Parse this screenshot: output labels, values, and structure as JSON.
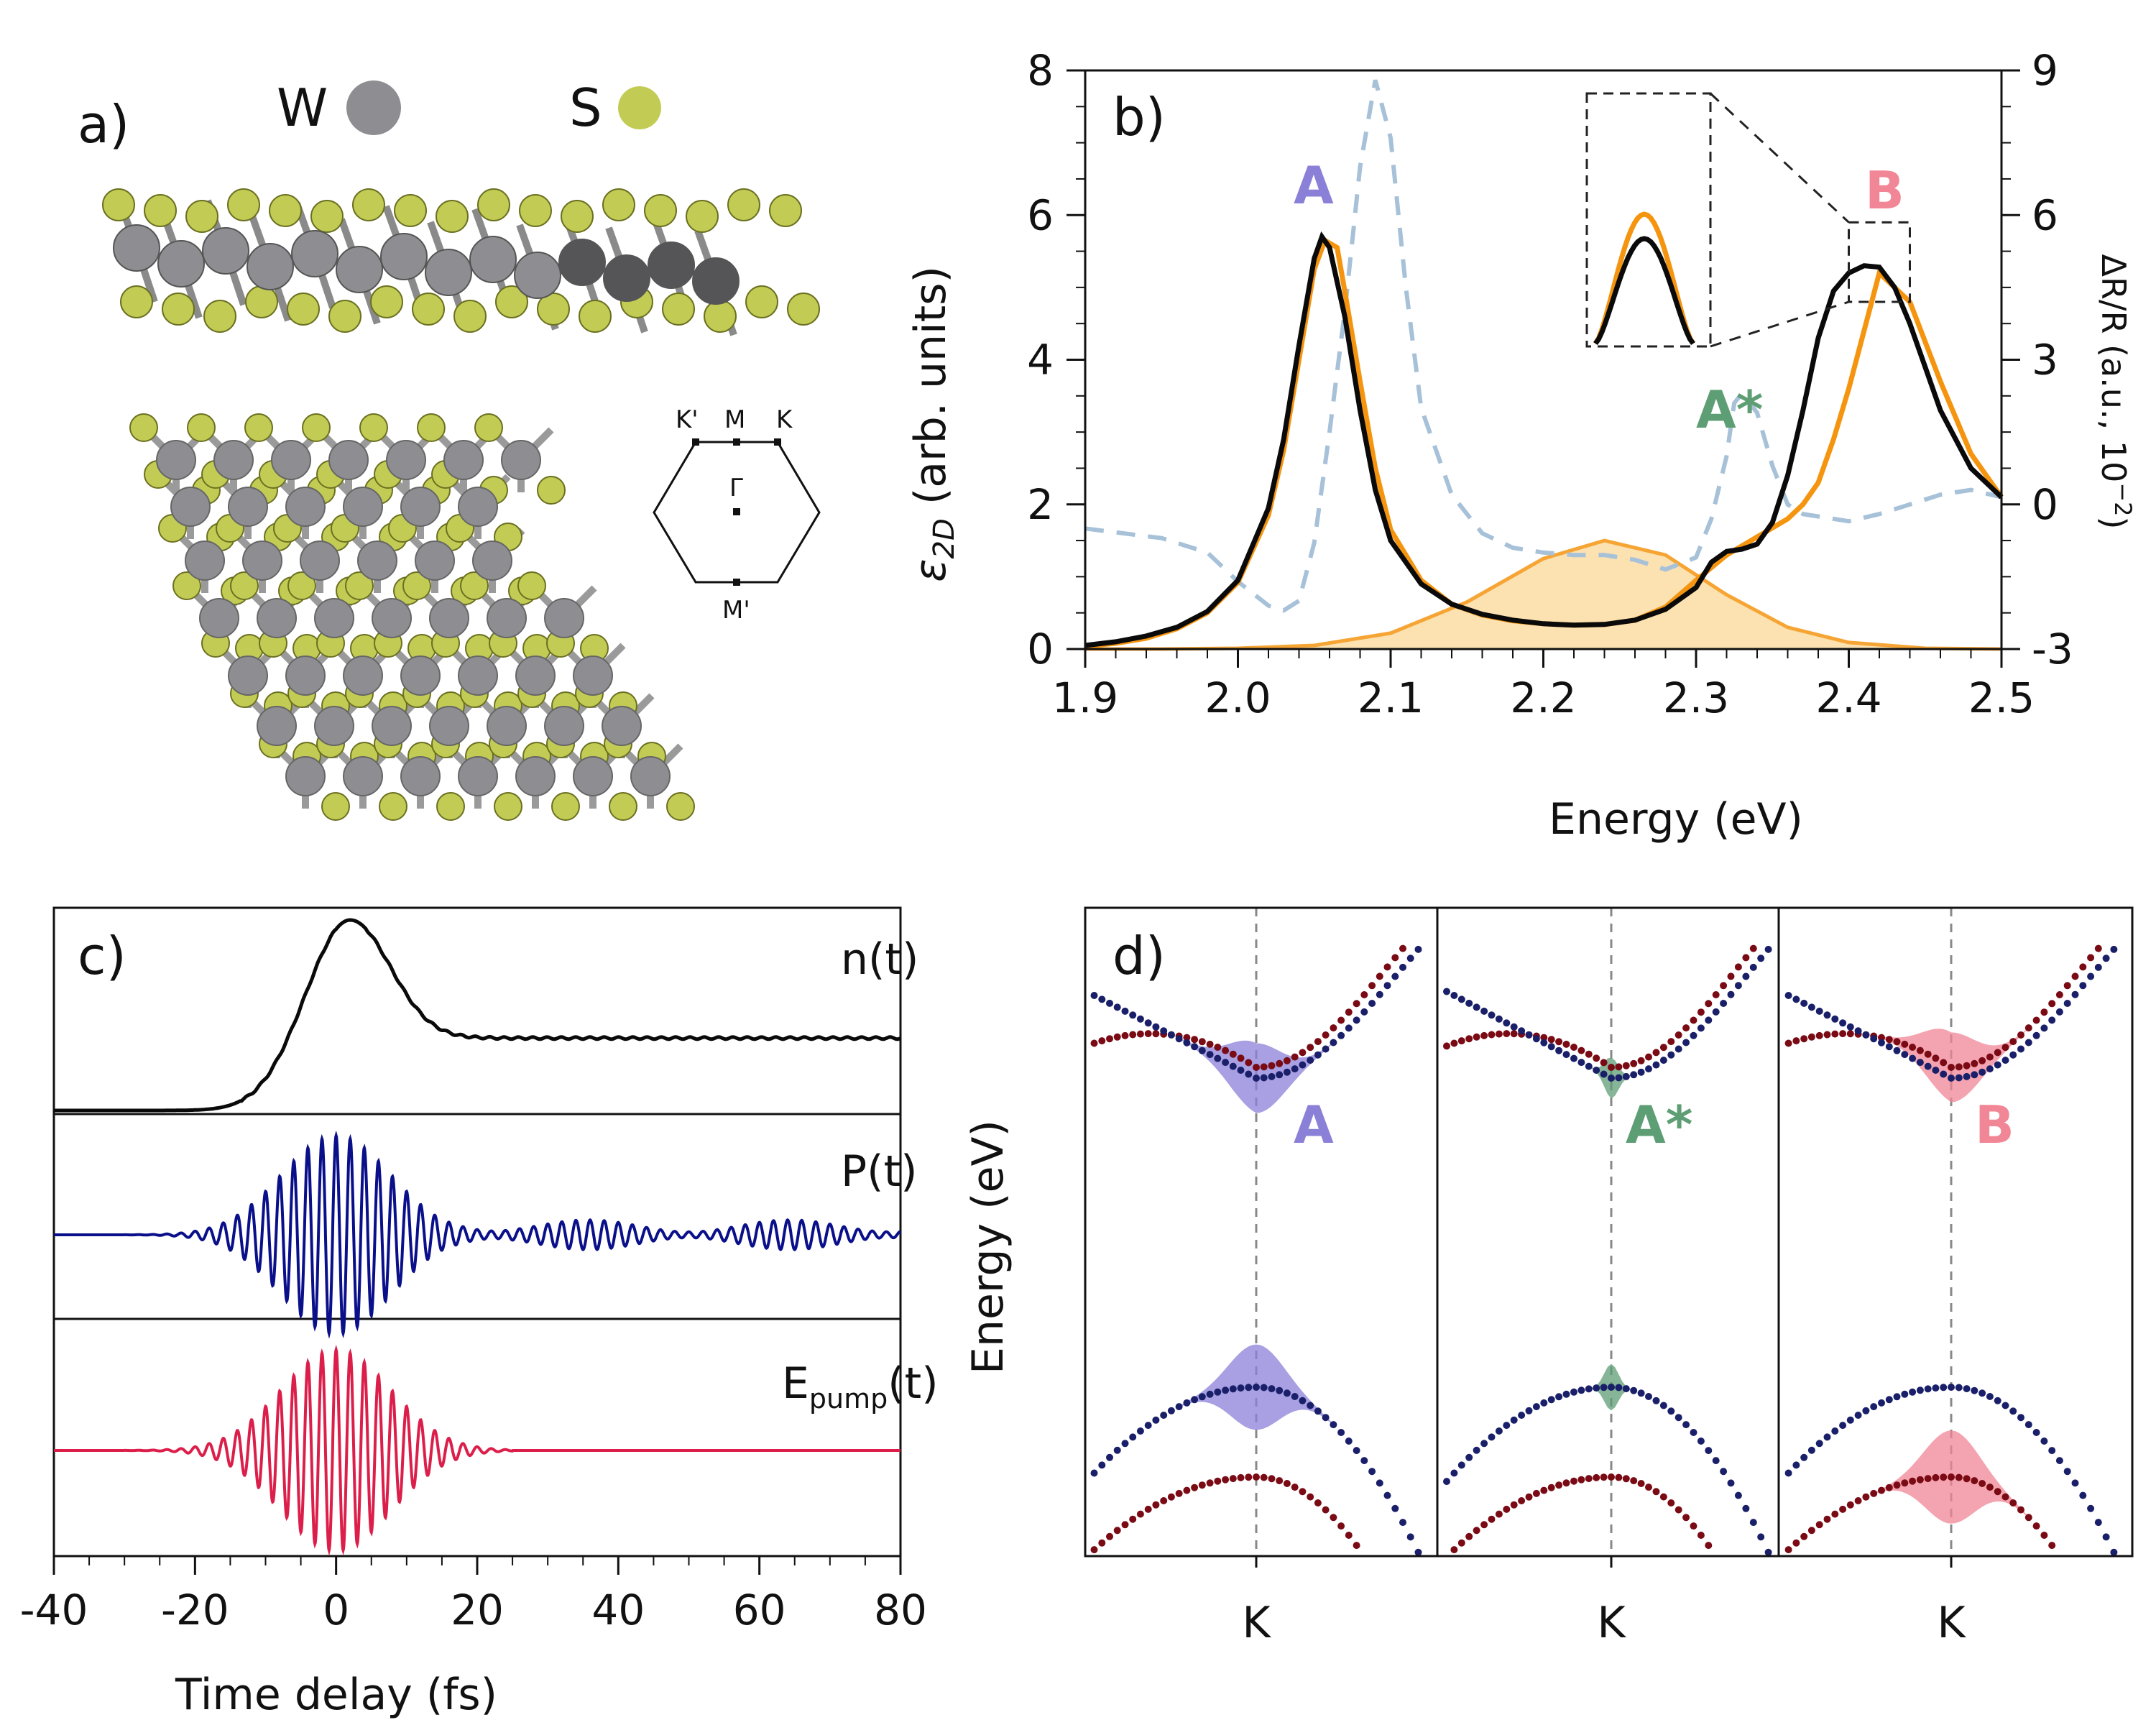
{
  "colors": {
    "black": "#0a0a0a",
    "orange": "#f5950f",
    "orange_fill": "#fbdca3",
    "dashed_blue": "#a7c1d8",
    "A": "#8b80d8",
    "Astar": "#5e9e74",
    "B": "#f08696",
    "W_atom": "#8e8e92",
    "S_atom": "#c2cc55",
    "navy": "#0a0f8a",
    "crimson": "#dc1f4a",
    "band_red": "#7a0a14",
    "band_blue": "#1a1f6a"
  },
  "panel_a": {
    "label": "a)",
    "legend_W": "W",
    "legend_S": "S",
    "bz": {
      "Kp": "K'",
      "M": "M",
      "K": "K",
      "Gamma": "Γ",
      "Mp": "M'"
    }
  },
  "chart_data": [
    {
      "id": "b",
      "type": "line",
      "label": "b)",
      "title": "",
      "xlabel": "Energy (eV)",
      "ylabel": "ε2D (arb. units)",
      "ylabel_main": "ε",
      "ylabel_sub": "2D",
      "ylabel_rest": " (arb. units)",
      "y2label": "ΔR/R (a.u., 10⁻²)",
      "y2label_main": "ΔR/R (a.u., 10",
      "y2label_sup": "−2",
      "y2label_end": ")",
      "xlim": [
        1.9,
        2.5
      ],
      "ylim": [
        0,
        8
      ],
      "y2lim": [
        -3,
        9
      ],
      "xticks": [
        "1.9",
        "2.0",
        "2.1",
        "2.2",
        "2.3",
        "2.4",
        "2.5"
      ],
      "yticks": [
        "0",
        "2",
        "4",
        "6",
        "8"
      ],
      "y2ticks": [
        "-3",
        "0",
        "3",
        "6",
        "9"
      ],
      "peak_labels": {
        "A": "A",
        "Astar": "A*",
        "B": "B"
      },
      "series": [
        {
          "name": "black",
          "style": "solid",
          "axis": "left",
          "x": [
            1.9,
            1.92,
            1.94,
            1.96,
            1.98,
            2.0,
            2.02,
            2.03,
            2.04,
            2.05,
            2.055,
            2.06,
            2.07,
            2.08,
            2.09,
            2.1,
            2.12,
            2.14,
            2.16,
            2.18,
            2.2,
            2.22,
            2.24,
            2.26,
            2.28,
            2.3,
            2.31,
            2.32,
            2.33,
            2.34,
            2.35,
            2.36,
            2.37,
            2.38,
            2.39,
            2.4,
            2.41,
            2.42,
            2.43,
            2.44,
            2.45,
            2.46,
            2.48,
            2.5
          ],
          "y": [
            0.05,
            0.1,
            0.18,
            0.3,
            0.52,
            0.95,
            1.95,
            2.9,
            4.2,
            5.4,
            5.7,
            5.55,
            4.6,
            3.3,
            2.2,
            1.5,
            0.9,
            0.62,
            0.48,
            0.4,
            0.35,
            0.33,
            0.34,
            0.4,
            0.55,
            0.85,
            1.2,
            1.35,
            1.38,
            1.45,
            1.75,
            2.4,
            3.3,
            4.3,
            4.95,
            5.2,
            5.3,
            5.28,
            5.0,
            4.5,
            3.9,
            3.3,
            2.5,
            2.1
          ]
        },
        {
          "name": "orange",
          "style": "solid",
          "axis": "left",
          "x": [
            1.9,
            1.92,
            1.94,
            1.96,
            1.98,
            2.0,
            2.02,
            2.03,
            2.04,
            2.05,
            2.057,
            2.065,
            2.07,
            2.08,
            2.09,
            2.1,
            2.12,
            2.14,
            2.16,
            2.18,
            2.2,
            2.22,
            2.24,
            2.26,
            2.28,
            2.3,
            2.32,
            2.34,
            2.36,
            2.37,
            2.38,
            2.39,
            2.4,
            2.42,
            2.44,
            2.46,
            2.48,
            2.5
          ],
          "y": [
            0.04,
            0.08,
            0.15,
            0.28,
            0.5,
            0.92,
            1.85,
            2.75,
            4.0,
            5.25,
            5.65,
            5.55,
            4.95,
            3.7,
            2.5,
            1.65,
            0.95,
            0.62,
            0.47,
            0.39,
            0.35,
            0.33,
            0.34,
            0.4,
            0.58,
            0.95,
            1.3,
            1.55,
            1.8,
            2.0,
            2.3,
            2.9,
            3.6,
            5.2,
            4.8,
            3.7,
            2.7,
            2.1
          ]
        },
        {
          "name": "orange_gaussian",
          "style": "filled",
          "axis": "left",
          "x": [
            1.9,
            1.95,
            2.0,
            2.05,
            2.1,
            2.15,
            2.2,
            2.24,
            2.28,
            2.32,
            2.36,
            2.4,
            2.45,
            2.5
          ],
          "y": [
            0.0,
            0.0,
            0.01,
            0.05,
            0.22,
            0.65,
            1.25,
            1.5,
            1.3,
            0.75,
            0.3,
            0.09,
            0.01,
            0.0
          ]
        },
        {
          "name": "dashed",
          "style": "dashed",
          "axis": "right",
          "x": [
            1.9,
            1.95,
            1.98,
            2.0,
            2.02,
            2.03,
            2.04,
            2.05,
            2.06,
            2.07,
            2.075,
            2.08,
            2.09,
            2.1,
            2.11,
            2.12,
            2.14,
            2.16,
            2.18,
            2.2,
            2.22,
            2.24,
            2.26,
            2.28,
            2.3,
            2.31,
            2.32,
            2.325,
            2.33,
            2.34,
            2.35,
            2.36,
            2.37,
            2.38,
            2.4,
            2.42,
            2.44,
            2.46,
            2.48,
            2.5
          ],
          "y": [
            -0.5,
            -0.7,
            -1.0,
            -1.6,
            -2.1,
            -2.2,
            -2.0,
            -0.8,
            1.5,
            4.0,
            5.5,
            7.0,
            8.8,
            7.6,
            4.5,
            2.0,
            0.2,
            -0.6,
            -0.9,
            -1.0,
            -1.05,
            -1.05,
            -1.15,
            -1.35,
            -1.1,
            -0.3,
            1.0,
            2.1,
            2.3,
            1.9,
            0.8,
            0.0,
            -0.2,
            -0.25,
            -0.35,
            -0.2,
            0.0,
            0.2,
            0.3,
            0.15
          ]
        }
      ]
    },
    {
      "id": "c",
      "type": "line",
      "label": "c)",
      "title": "",
      "xlabel": "Time delay (fs)",
      "ylabel": "",
      "xlim": [
        -40,
        80
      ],
      "xticks": [
        "-40",
        "-20",
        "0",
        "20",
        "40",
        "60",
        "80"
      ],
      "series": [
        {
          "name": "n(t)",
          "label": "n(t)",
          "color_key": "black",
          "description": "Carrier density rises from 0 near -20 fs to a peak near 2 fs (value 1.0) and decays to a plateau of 0.38 after 20 fs",
          "baseline": 0.0,
          "peak_time": 2,
          "peak": 1.0,
          "plateau": 0.38
        },
        {
          "name": "P(t)",
          "label": "P(t)",
          "color_key": "navy",
          "description": "Polarization oscillating under a Gaussian envelope centered at 0 fs with amplitude 1.0, followed by weaker beating oscillations up to 80 fs",
          "envelope_center": 0,
          "envelope_width_fs": 9,
          "carrier_period_fs": 2.0,
          "tail_amplitude": 0.15
        },
        {
          "name": "Epump(t)",
          "label_main": "E",
          "label_sub": "pump",
          "label_end": "(t)",
          "color_key": "crimson",
          "description": "Pump pulse oscillating under a Gaussian envelope centered at 0 fs",
          "envelope_center": 0,
          "envelope_width_fs": 9,
          "carrier_period_fs": 2.0
        }
      ]
    },
    {
      "id": "d",
      "type": "line",
      "label": "d)",
      "ylabel": "Energy (eV)",
      "subpanels": [
        {
          "name": "A",
          "label": "A",
          "color_key": "A",
          "xtick": "K",
          "conduction_weight": [
            0.45,
            0.35,
            0.2
          ],
          "valence_weight": [
            0.55,
            0.45,
            0.3
          ]
        },
        {
          "name": "A*",
          "label": "A*",
          "color_key": "Astar",
          "xtick": "K",
          "conduction_weight": [
            0.22,
            0.2,
            0.12
          ],
          "valence_weight": [
            0.25,
            0.2,
            0.15
          ]
        },
        {
          "name": "B",
          "label": "B",
          "color_key": "B",
          "xtick": "K",
          "conduction_weight": [
            0.45,
            0.35,
            0.2
          ],
          "valence_weight": [
            0.6,
            0.5,
            0.35
          ]
        }
      ]
    }
  ]
}
